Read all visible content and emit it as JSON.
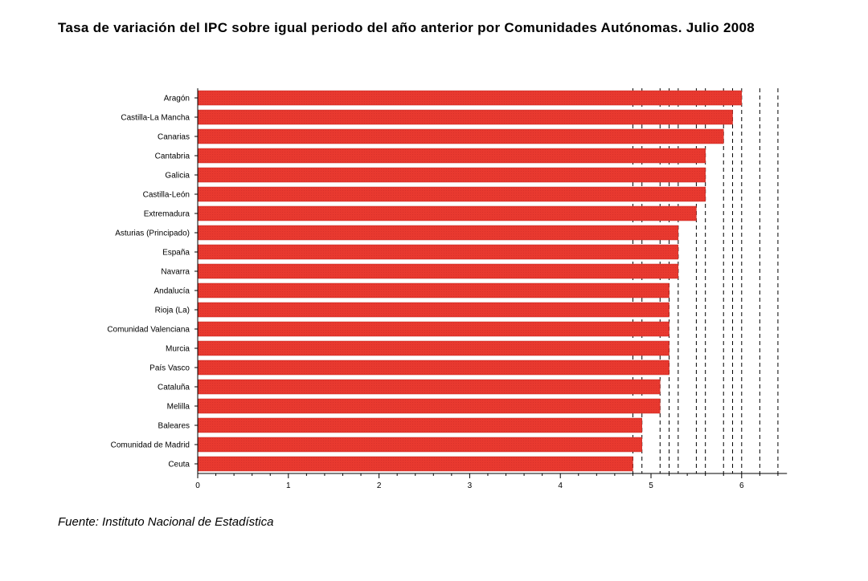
{
  "title": "Tasa de variación del IPC sobre igual periodo del año anterior por Comunidades Autónomas. Julio 2008",
  "source": "Fuente: Instituto Nacional de Estadística",
  "colors": {
    "bar": "#e8392f",
    "bar_edge": "#c42a22",
    "axis": "#000000"
  },
  "chart_data": {
    "type": "bar",
    "orientation": "horizontal",
    "categories": [
      "Aragón",
      "Castilla-La Mancha",
      "Canarias",
      "Cantabria",
      "Galicia",
      "Castilla-León",
      "Extremadura",
      "Asturias (Principado)",
      "España",
      "Navarra",
      "Andalucía",
      "Rioja (La)",
      "Comunidad Valenciana",
      "Murcia",
      "País Vasco",
      "Cataluña",
      "Melilla",
      "Baleares",
      "Comunidad de Madrid",
      "Ceuta"
    ],
    "values": [
      6.0,
      5.9,
      5.8,
      5.6,
      5.6,
      5.6,
      5.5,
      5.3,
      5.3,
      5.3,
      5.2,
      5.2,
      5.2,
      5.2,
      5.2,
      5.1,
      5.1,
      4.9,
      4.9,
      4.8
    ],
    "xlim": [
      0,
      6.5
    ],
    "xticks": [
      "0",
      "1",
      "2",
      "3",
      "4",
      "5",
      "6"
    ],
    "grid": "vertical dashed at bar ends",
    "legend": "none",
    "xlabel": "",
    "ylabel": ""
  }
}
